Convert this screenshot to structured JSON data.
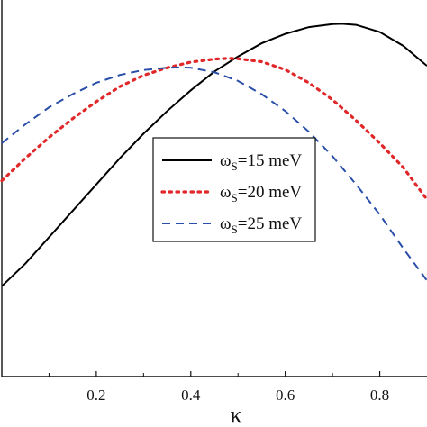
{
  "chart_data": {
    "type": "line",
    "xlabel": "κ",
    "ylabel": "",
    "title": "",
    "xlim": [
      0.0,
      0.9
    ],
    "x_ticks": [
      "0.2",
      "0.4",
      "0.6",
      "0.8"
    ],
    "x_tick_values": [
      0.2,
      0.4,
      0.6,
      0.8
    ],
    "grid": false,
    "legend_position": "center-right",
    "series": [
      {
        "name": "ωs=15 meV",
        "legend_base": "ω",
        "legend_sub": "S",
        "legend_rest": "=15 meV",
        "style": "solid",
        "color": "#000000",
        "x": [
          0.0,
          0.05,
          0.1,
          0.15,
          0.2,
          0.25,
          0.3,
          0.35,
          0.4,
          0.45,
          0.5,
          0.55,
          0.6,
          0.65,
          0.7,
          0.72,
          0.75,
          0.8,
          0.85,
          0.9
        ],
        "y": [
          0.24,
          0.3,
          0.37,
          0.44,
          0.51,
          0.58,
          0.645,
          0.705,
          0.76,
          0.81,
          0.85,
          0.885,
          0.91,
          0.928,
          0.936,
          0.937,
          0.934,
          0.915,
          0.878,
          0.825
        ]
      },
      {
        "name": "ωs=20 meV",
        "legend_base": "ω",
        "legend_sub": "S",
        "legend_rest": "=20 meV",
        "style": "dotted",
        "color": "#e0282a",
        "x": [
          0.0,
          0.05,
          0.1,
          0.15,
          0.2,
          0.25,
          0.3,
          0.35,
          0.4,
          0.45,
          0.48,
          0.5,
          0.55,
          0.6,
          0.65,
          0.7,
          0.75,
          0.8,
          0.85,
          0.9
        ],
        "y": [
          0.52,
          0.58,
          0.635,
          0.685,
          0.73,
          0.77,
          0.8,
          0.82,
          0.835,
          0.843,
          0.845,
          0.844,
          0.836,
          0.815,
          0.78,
          0.735,
          0.68,
          0.62,
          0.555,
          0.47
        ]
      },
      {
        "name": "ωs=25 meV",
        "legend_base": "ω",
        "legend_sub": "S",
        "legend_rest": "=25 meV",
        "style": "dashed",
        "color": "#2a4fa8",
        "x": [
          0.0,
          0.05,
          0.1,
          0.15,
          0.2,
          0.25,
          0.3,
          0.35,
          0.38,
          0.4,
          0.45,
          0.5,
          0.55,
          0.6,
          0.65,
          0.7,
          0.75,
          0.8,
          0.85,
          0.9
        ],
        "y": [
          0.62,
          0.67,
          0.715,
          0.75,
          0.78,
          0.801,
          0.814,
          0.82,
          0.821,
          0.82,
          0.808,
          0.785,
          0.75,
          0.705,
          0.65,
          0.585,
          0.51,
          0.43,
          0.34,
          0.255
        ]
      }
    ],
    "ylim": [
      0.0,
      1.0
    ]
  }
}
